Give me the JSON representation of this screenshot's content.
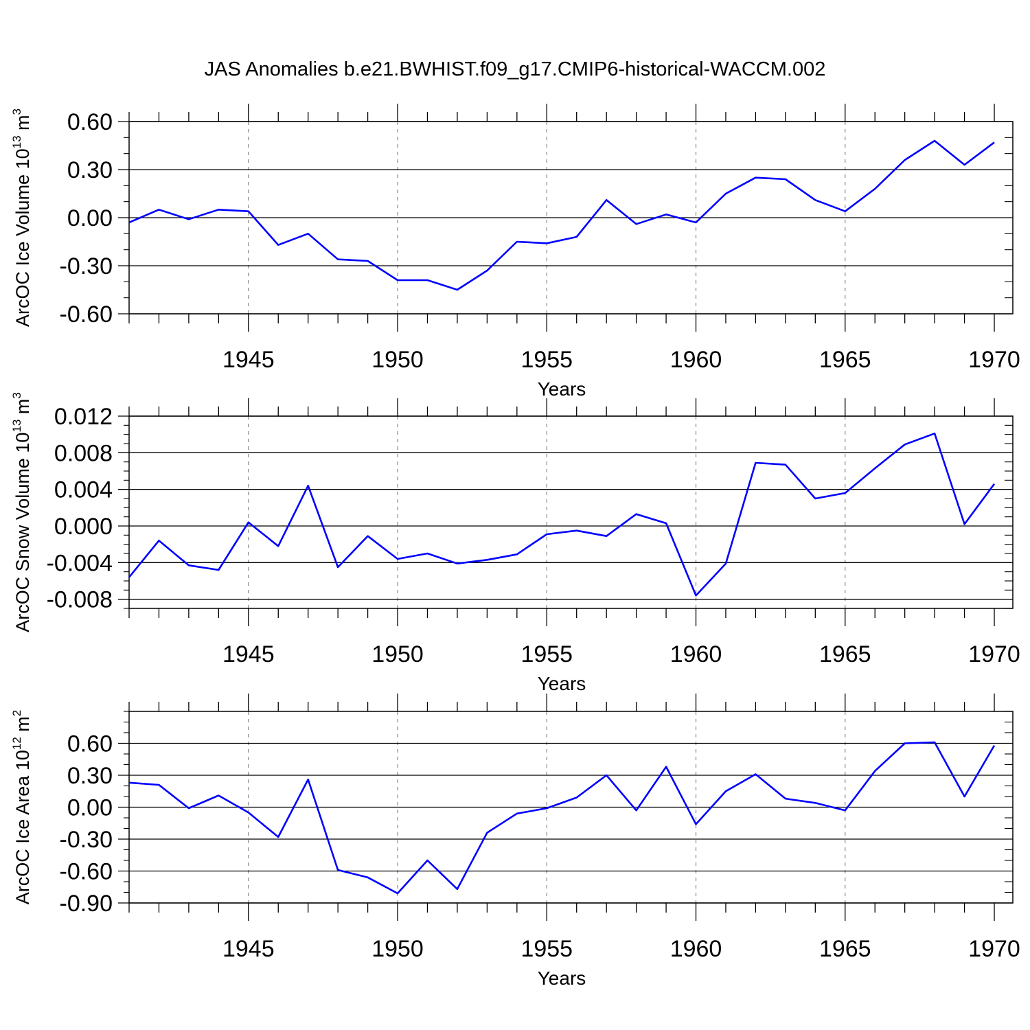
{
  "figure": {
    "title": "JAS Anomalies b.e21.BWHIST.f09_g17.CMIP6-historical-WACCM.002"
  },
  "colors": {
    "line": "#0000ff",
    "axis": "#000000",
    "grid": "#888888"
  },
  "chart_data": [
    {
      "type": "line",
      "ylabel": "ArcOC Ice Volume 10",
      "ylabel_exp": "13",
      "ylabel_unit": " m",
      "ylabel_unit_exp": "3",
      "xlabel": "Years",
      "xlim": [
        1941,
        1970
      ],
      "ylim": [
        -0.6,
        0.6
      ],
      "ylim_plot": [
        -0.6,
        0.6
      ],
      "yticks": [
        -0.6,
        -0.3,
        0.0,
        0.3,
        0.6
      ],
      "ytick_labels": [
        "-0.60",
        "-0.30",
        "0.00",
        "0.30",
        "0.60"
      ],
      "yminor_step": 0.1,
      "xticks": [
        1945,
        1950,
        1955,
        1960,
        1965,
        1970
      ],
      "xtick_labels": [
        "1945",
        "1950",
        "1955",
        "1960",
        "1965",
        "1970"
      ],
      "grid": "vertical dashed at major x ticks",
      "x": [
        1941,
        1942,
        1943,
        1944,
        1945,
        1946,
        1947,
        1948,
        1949,
        1950,
        1951,
        1952,
        1953,
        1954,
        1955,
        1956,
        1957,
        1958,
        1959,
        1960,
        1961,
        1962,
        1963,
        1964,
        1965,
        1966,
        1967,
        1968,
        1969,
        1970
      ],
      "y": [
        -0.03,
        0.05,
        -0.01,
        0.05,
        0.04,
        -0.17,
        -0.1,
        -0.26,
        -0.27,
        -0.39,
        -0.39,
        -0.45,
        -0.33,
        -0.15,
        -0.16,
        -0.12,
        0.11,
        -0.04,
        0.02,
        -0.03,
        0.15,
        0.25,
        0.24,
        0.11,
        0.04,
        0.18,
        0.36,
        0.48,
        0.33,
        0.47
      ]
    },
    {
      "type": "line",
      "ylabel": "ArcOC Snow Volume 10",
      "ylabel_exp": "13",
      "ylabel_unit": " m",
      "ylabel_unit_exp": "3",
      "xlabel": "Years",
      "xlim": [
        1941,
        1970
      ],
      "ylim": [
        -0.009,
        0.012
      ],
      "ylim_plot": [
        -0.009,
        0.012
      ],
      "yticks": [
        -0.008,
        -0.004,
        0.0,
        0.004,
        0.008,
        0.012
      ],
      "ytick_labels": [
        "-0.008",
        "-0.004",
        "0.000",
        "0.004",
        "0.008",
        "0.012"
      ],
      "yminor_step": 0.001,
      "xticks": [
        1945,
        1950,
        1955,
        1960,
        1965,
        1970
      ],
      "xtick_labels": [
        "1945",
        "1950",
        "1955",
        "1960",
        "1965",
        "1970"
      ],
      "grid": "vertical dashed at major x ticks",
      "x": [
        1941,
        1942,
        1943,
        1944,
        1945,
        1946,
        1947,
        1948,
        1949,
        1950,
        1951,
        1952,
        1953,
        1954,
        1955,
        1956,
        1957,
        1958,
        1959,
        1960,
        1961,
        1962,
        1963,
        1964,
        1965,
        1966,
        1967,
        1968,
        1969,
        1970
      ],
      "y": [
        -0.0056,
        -0.0016,
        -0.0043,
        -0.0048,
        0.0004,
        -0.0022,
        0.0044,
        -0.0045,
        -0.0011,
        -0.0036,
        -0.003,
        -0.0041,
        -0.0037,
        -0.0031,
        -0.0009,
        -0.0005,
        -0.0011,
        0.0013,
        0.0003,
        -0.0076,
        -0.0041,
        0.0069,
        0.0067,
        0.003,
        0.0036,
        0.0063,
        0.0089,
        0.0101,
        0.0002,
        0.0046
      ]
    },
    {
      "type": "line",
      "ylabel": "ArcOC Ice Area 10",
      "ylabel_exp": "12",
      "ylabel_unit": " m",
      "ylabel_unit_exp": "2",
      "xlabel": "Years",
      "xlim": [
        1941,
        1970
      ],
      "ylim": [
        -0.9,
        0.9
      ],
      "ylim_plot": [
        -0.9,
        0.9
      ],
      "yticks": [
        -0.9,
        -0.6,
        -0.3,
        0.0,
        0.3,
        0.6
      ],
      "ytick_labels": [
        "-0.90",
        "-0.60",
        "-0.30",
        "0.00",
        "0.30",
        "0.60"
      ],
      "yminor_step": 0.1,
      "xticks": [
        1945,
        1950,
        1955,
        1960,
        1965,
        1970
      ],
      "xtick_labels": [
        "1945",
        "1950",
        "1955",
        "1960",
        "1965",
        "1970"
      ],
      "grid": "vertical dashed at major x ticks",
      "x": [
        1941,
        1942,
        1943,
        1944,
        1945,
        1946,
        1947,
        1948,
        1949,
        1950,
        1951,
        1952,
        1953,
        1954,
        1955,
        1956,
        1957,
        1958,
        1959,
        1960,
        1961,
        1962,
        1963,
        1964,
        1965,
        1966,
        1967,
        1968,
        1969,
        1970
      ],
      "y": [
        0.23,
        0.21,
        -0.01,
        0.11,
        -0.05,
        -0.28,
        0.26,
        -0.59,
        -0.66,
        -0.81,
        -0.5,
        -0.77,
        -0.24,
        -0.06,
        -0.01,
        0.09,
        0.3,
        -0.03,
        0.38,
        -0.16,
        0.15,
        0.31,
        0.08,
        0.04,
        -0.03,
        0.34,
        0.6,
        0.61,
        0.1,
        0.58
      ]
    }
  ]
}
